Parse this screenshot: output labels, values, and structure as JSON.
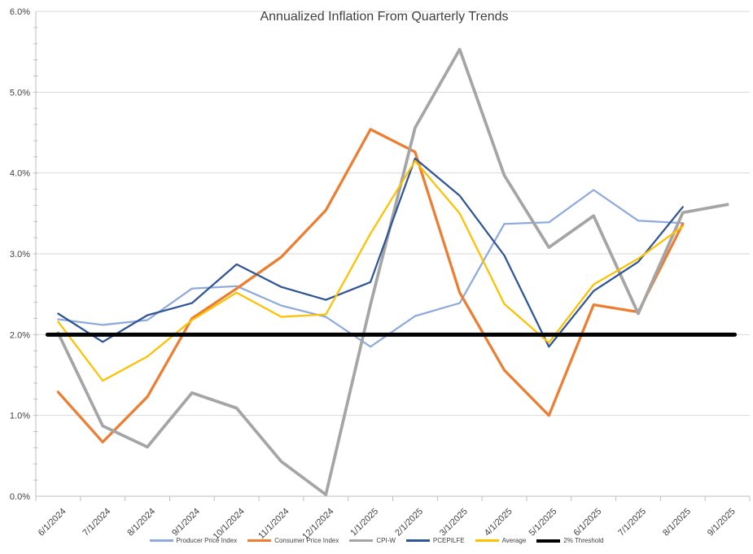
{
  "page": {
    "background": "#FFFFFF"
  },
  "chart_data": {
    "type": "line",
    "title": "Annualized Inflation From Quarterly Trends",
    "xlabel": "",
    "ylabel": "",
    "ylim": [
      0,
      6
    ],
    "ytick_step": 1.0,
    "ytick_minor_step": 0.2,
    "ytick_labels": [
      "0.0%",
      "1.0%",
      "2.0%",
      "3.0%",
      "4.0%",
      "5.0%",
      "6.0%"
    ],
    "grid": "horizontal-major",
    "legend_position": "bottom",
    "categories": [
      "6/1/2024",
      "7/1/2024",
      "8/1/2024",
      "9/1/2024",
      "10/1/2024",
      "11/1/2024",
      "12/1/2024",
      "1/1/2025",
      "2/1/2025",
      "3/1/2025",
      "4/1/2025",
      "5/1/2025",
      "6/1/2025",
      "7/1/2025",
      "8/1/2025",
      "9/1/2025"
    ],
    "series": [
      {
        "name": "Producer Price Index",
        "color": "#8FAADC",
        "width": 2.25,
        "values": [
          2.19,
          2.12,
          2.18,
          2.57,
          2.6,
          2.36,
          2.22,
          1.85,
          2.23,
          2.39,
          3.37,
          3.39,
          3.79,
          3.41,
          3.38,
          null
        ]
      },
      {
        "name": "Consumer Price Index",
        "color": "#ED7D31",
        "width": 3.25,
        "values": [
          1.29,
          0.67,
          1.23,
          2.2,
          2.57,
          2.96,
          3.54,
          4.54,
          4.26,
          2.52,
          1.56,
          1.0,
          2.37,
          2.28,
          3.37,
          null
        ]
      },
      {
        "name": "CPI-W",
        "color": "#A5A5A5",
        "width": 3.75,
        "values": [
          2.02,
          0.87,
          0.61,
          1.28,
          1.09,
          0.43,
          0.02,
          2.37,
          4.56,
          5.53,
          3.97,
          3.08,
          3.47,
          2.26,
          3.51,
          3.61
        ]
      },
      {
        "name": "PCEPILFE",
        "color": "#2F5597",
        "width": 2.25,
        "values": [
          2.26,
          1.91,
          2.24,
          2.39,
          2.87,
          2.59,
          2.43,
          2.65,
          4.18,
          3.72,
          2.98,
          1.85,
          2.54,
          2.9,
          3.58,
          null
        ]
      },
      {
        "name": "Average",
        "color": "#FFC000",
        "width": 2.25,
        "values": [
          2.16,
          1.43,
          1.73,
          2.18,
          2.52,
          2.22,
          2.25,
          3.25,
          4.15,
          3.5,
          2.38,
          1.9,
          2.62,
          2.94,
          3.34,
          null
        ]
      },
      {
        "name": "2% Threshold",
        "color": "#000000",
        "width": 5,
        "threshold": true,
        "values": [
          2,
          2,
          2,
          2,
          2,
          2,
          2,
          2,
          2,
          2,
          2,
          2,
          2,
          2,
          2,
          2
        ]
      }
    ],
    "axis_colors": {
      "gridline": "#D9D9D9",
      "axis_line": "#BFBFBF",
      "tick": "#BFBFBF",
      "label_text": "#404040",
      "title_text": "#404040"
    }
  }
}
